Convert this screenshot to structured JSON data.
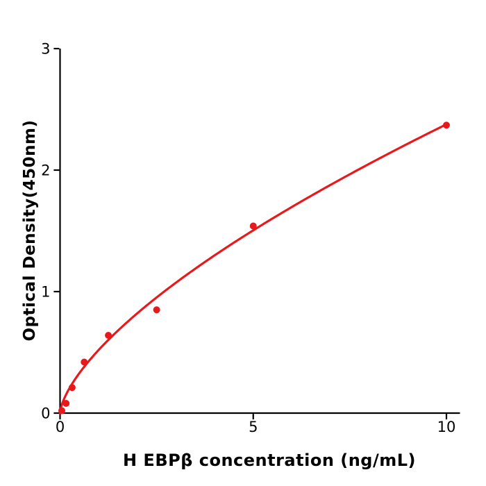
{
  "figure": {
    "background": "#ffffff",
    "axis_color": "#000000",
    "accent_color": "#e8191c"
  },
  "chart_data": {
    "type": "scatter",
    "title": "",
    "xlabel": "H  EBPβ concentration (ng/mL)",
    "ylabel": "Optical Density(450nm)",
    "xlim": [
      0,
      10.35
    ],
    "ylim": [
      0,
      3
    ],
    "x_ticks": [
      "0",
      "5",
      "10"
    ],
    "x_tick_values": [
      0,
      5,
      10
    ],
    "y_ticks": [
      "0",
      "1",
      "2",
      "3"
    ],
    "y_tick_values": [
      0,
      1,
      2,
      3
    ],
    "grid": false,
    "legend_position": "none",
    "series": [
      {
        "name": "standard-points",
        "type": "scatter",
        "color": "#e8191c",
        "x": [
          0,
          0.156,
          0.3125,
          0.625,
          1.25,
          2.5,
          5,
          10
        ],
        "y": [
          0.02,
          0.08,
          0.21,
          0.42,
          0.64,
          0.85,
          1.54,
          2.37
        ]
      },
      {
        "name": "fit-curve",
        "type": "line",
        "color": "#e8191c",
        "fit": {
          "kind": "power",
          "a": 0.52,
          "b": 0.66,
          "x_start": 0,
          "x_end": 10
        }
      }
    ]
  }
}
